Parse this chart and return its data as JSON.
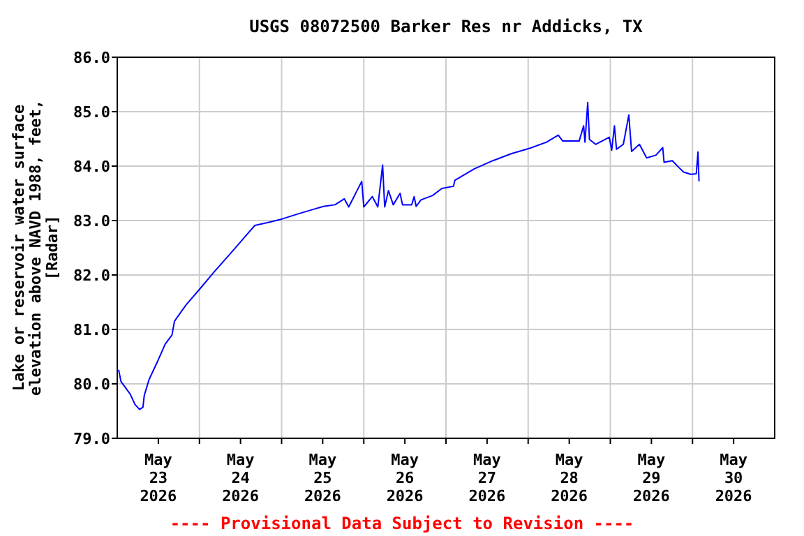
{
  "chart_data": {
    "type": "line",
    "title": "USGS 08072500 Barker Res nr Addicks, TX",
    "ylabel": "Lake or reservoir water surface\nelevation above NAVD 1988, feet,\n[Radar]",
    "annotations": [
      "---- Provisional Data Subject to Revision ----"
    ],
    "xlim": [
      "2026-05-23T00:00",
      "2026-05-31T00:00"
    ],
    "xticks": [
      {
        "value": "2026-05-23T12:00",
        "label": "May\n23\n2026"
      },
      {
        "value": "2026-05-24T00:00",
        "label": null
      },
      {
        "value": "2026-05-24T12:00",
        "label": "May\n24\n2026"
      },
      {
        "value": "2026-05-25T00:00",
        "label": null
      },
      {
        "value": "2026-05-25T12:00",
        "label": "May\n25\n2026"
      },
      {
        "value": "2026-05-26T00:00",
        "label": null
      },
      {
        "value": "2026-05-26T12:00",
        "label": "May\n26\n2026"
      },
      {
        "value": "2026-05-27T00:00",
        "label": null
      },
      {
        "value": "2026-05-27T12:00",
        "label": "May\n27\n2026"
      },
      {
        "value": "2026-05-28T00:00",
        "label": null
      },
      {
        "value": "2026-05-28T12:00",
        "label": "May\n28\n2026"
      },
      {
        "value": "2026-05-29T00:00",
        "label": null
      },
      {
        "value": "2026-05-29T12:00",
        "label": "May\n29\n2026"
      },
      {
        "value": "2026-05-30T00:00",
        "label": null
      },
      {
        "value": "2026-05-30T12:00",
        "label": "May\n30\n2026"
      }
    ],
    "ylim": [
      79,
      86
    ],
    "yticks": [
      {
        "value": 79,
        "label": "79.0"
      },
      {
        "value": 80,
        "label": "80.0"
      },
      {
        "value": 81,
        "label": "81.0"
      },
      {
        "value": 82,
        "label": "82.0"
      },
      {
        "value": 83,
        "label": "83.0"
      },
      {
        "value": 84,
        "label": "84.0"
      },
      {
        "value": 85,
        "label": "85.0"
      },
      {
        "value": 86,
        "label": "86.0"
      }
    ],
    "grid": true,
    "marker": "none",
    "line_style": "solid",
    "series": [
      {
        "color": "#0000ff",
        "x": [
          "2026-05-23T00:24",
          "2026-05-23T01:06",
          "2026-05-23T02:24",
          "2026-05-23T03:48",
          "2026-05-23T05:12",
          "2026-05-23T06:30",
          "2026-05-23T07:30",
          "2026-05-23T07:54",
          "2026-05-23T09:18",
          "2026-05-23T11:54",
          "2026-05-23T14:00",
          "2026-05-23T16:00",
          "2026-05-23T16:42",
          "2026-05-23T20:06",
          "2026-05-24T00:12",
          "2026-05-24T04:12",
          "2026-05-24T09:42",
          "2026-05-24T13:48",
          "2026-05-24T16:12",
          "2026-05-24T20:30",
          "2026-05-25T00:12",
          "2026-05-25T04:42",
          "2026-05-25T09:30",
          "2026-05-25T12:12",
          "2026-05-25T15:36",
          "2026-05-25T18:18",
          "2026-05-25T19:36",
          "2026-05-25T23:24",
          "2026-05-26T00:00",
          "2026-05-26T02:30",
          "2026-05-26T04:06",
          "2026-05-26T05:30",
          "2026-05-26T06:06",
          "2026-05-26T07:12",
          "2026-05-26T08:36",
          "2026-05-26T10:36",
          "2026-05-26T11:18",
          "2026-05-26T14:00",
          "2026-05-26T14:42",
          "2026-05-26T15:18",
          "2026-05-26T16:42",
          "2026-05-26T20:06",
          "2026-05-26T22:48",
          "2026-05-27T02:12",
          "2026-05-27T02:36",
          "2026-05-27T08:18",
          "2026-05-27T13:42",
          "2026-05-27T19:12",
          "2026-05-28T00:36",
          "2026-05-28T05:24",
          "2026-05-28T08:48",
          "2026-05-28T10:06",
          "2026-05-28T14:54",
          "2026-05-28T16:12",
          "2026-05-28T16:36",
          "2026-05-28T17:24",
          "2026-05-28T17:54",
          "2026-05-28T19:42",
          "2026-05-28T23:42",
          "2026-05-29T00:24",
          "2026-05-29T01:12",
          "2026-05-29T01:48",
          "2026-05-29T03:48",
          "2026-05-29T05:24",
          "2026-05-29T06:12",
          "2026-05-29T08:30",
          "2026-05-29T10:36",
          "2026-05-29T13:18",
          "2026-05-29T15:18",
          "2026-05-29T15:42",
          "2026-05-29T18:06",
          "2026-05-29T20:06",
          "2026-05-29T21:24",
          "2026-05-29T23:30",
          "2026-05-30T01:06",
          "2026-05-30T01:36",
          "2026-05-30T01:54"
        ],
        "values": [
          80.26,
          80.04,
          79.93,
          79.81,
          79.62,
          79.53,
          79.57,
          79.79,
          80.08,
          80.43,
          80.73,
          80.9,
          81.15,
          81.45,
          81.75,
          82.05,
          82.44,
          82.74,
          82.91,
          82.97,
          83.03,
          83.12,
          83.21,
          83.26,
          83.29,
          83.4,
          83.25,
          83.72,
          83.25,
          83.44,
          83.25,
          84.02,
          83.25,
          83.55,
          83.29,
          83.5,
          83.29,
          83.29,
          83.44,
          83.26,
          83.38,
          83.46,
          83.59,
          83.63,
          83.74,
          83.95,
          84.1,
          84.23,
          84.33,
          84.44,
          84.57,
          84.46,
          84.46,
          84.74,
          84.44,
          85.17,
          84.49,
          84.4,
          84.53,
          84.29,
          84.74,
          84.31,
          84.4,
          84.94,
          84.27,
          84.4,
          84.15,
          84.2,
          84.34,
          84.07,
          84.1,
          83.97,
          83.89,
          83.85,
          83.86,
          84.26,
          83.72
        ]
      }
    ]
  }
}
